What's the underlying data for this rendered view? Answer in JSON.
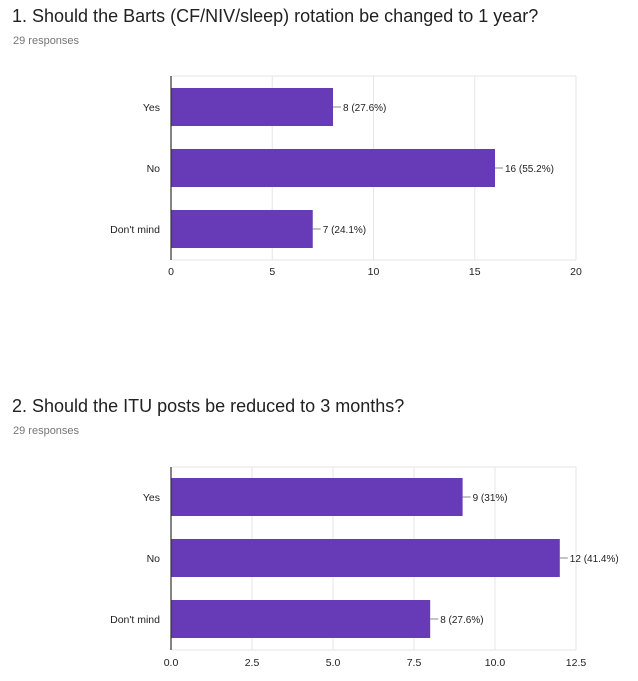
{
  "questions": [
    {
      "title": "1. Should the Barts (CF/NIV/sleep) rotation be changed to 1 year?",
      "responses": "29 responses"
    },
    {
      "title": "2. Should the ITU posts be reduced to 3 months?",
      "responses": "29 responses"
    }
  ],
  "colors": {
    "bar": "#673ab7",
    "grid": "#e6e6e6",
    "axis": "#333333"
  },
  "chart_data": [
    {
      "type": "bar",
      "orientation": "horizontal",
      "title": "1. Should the Barts (CF/NIV/sleep) rotation be changed to 1 year?",
      "categories": [
        "Yes",
        "No",
        "Don't mind"
      ],
      "values": [
        8,
        16,
        7
      ],
      "labels": [
        "8 (27.6%)",
        "16 (55.2%)",
        "7 (24.1%)"
      ],
      "xlim": [
        0,
        20
      ],
      "ticks": [
        0,
        5,
        10,
        15,
        20
      ],
      "tick_labels": [
        "0",
        "5",
        "10",
        "15",
        "20"
      ]
    },
    {
      "type": "bar",
      "orientation": "horizontal",
      "title": "2. Should the ITU posts be reduced to 3 months?",
      "categories": [
        "Yes",
        "No",
        "Don't mind"
      ],
      "values": [
        9,
        12,
        8
      ],
      "labels": [
        "9 (31%)",
        "12 (41.4%)",
        "8 (27.6%)"
      ],
      "xlim": [
        0,
        12.5
      ],
      "ticks": [
        0,
        2.5,
        5,
        7.5,
        10,
        12.5
      ],
      "tick_labels": [
        "0.0",
        "2.5",
        "5.0",
        "7.5",
        "10.0",
        "12.5"
      ]
    }
  ]
}
